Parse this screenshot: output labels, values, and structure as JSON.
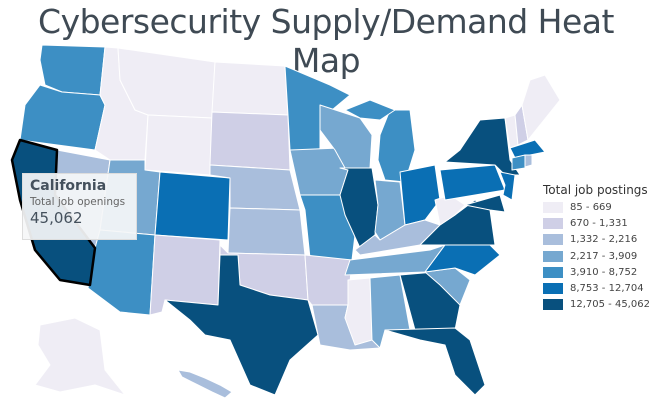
{
  "title": "Cybersecurity Supply/Demand Heat Map",
  "legend": {
    "title": "Total job postings",
    "bins": [
      {
        "label": "85 - 669",
        "color": "#efedf5"
      },
      {
        "label": "670 - 1,331",
        "color": "#cfcfe6"
      },
      {
        "label": "1,332 - 2,216",
        "color": "#a9bedc"
      },
      {
        "label": "2,217 - 3,909",
        "color": "#76a8d0"
      },
      {
        "label": "3,910 - 8,752",
        "color": "#3d8fc4"
      },
      {
        "label": "8,753 - 12,704",
        "color": "#0a6fb4"
      },
      {
        "label": "12,705 - 45,062",
        "color": "#08507e"
      }
    ]
  },
  "tooltip": {
    "state": "California",
    "label": "Total job openings",
    "value": "45,062"
  },
  "states": {
    "WA": 4,
    "OR": 4,
    "CA": 6,
    "NV": 2,
    "ID": 0,
    "MT": 0,
    "WY": 0,
    "UT": 3,
    "AZ": 4,
    "CO": 5,
    "NM": 1,
    "ND": 0,
    "SD": 1,
    "NE": 2,
    "KS": 2,
    "OK": 1,
    "TX": 6,
    "MN": 4,
    "IA": 3,
    "MO": 4,
    "AR": 1,
    "LA": 2,
    "WI": 3,
    "IL": 6,
    "MI": 4,
    "MI2": 4,
    "IN": 3,
    "OH": 5,
    "KY": 2,
    "TN": 3,
    "MS": 0,
    "AL": 3,
    "GA": 6,
    "FL": 6,
    "SC": 3,
    "NC": 5,
    "VA": 6,
    "WV": 0,
    "PA": 5,
    "NY": 6,
    "MD": 6,
    "NJ": 5,
    "VT": 0,
    "NH": 1,
    "ME": 0,
    "MA": 5,
    "CT": 4,
    "RI": 2,
    "AK": 0,
    "HI": 2
  }
}
